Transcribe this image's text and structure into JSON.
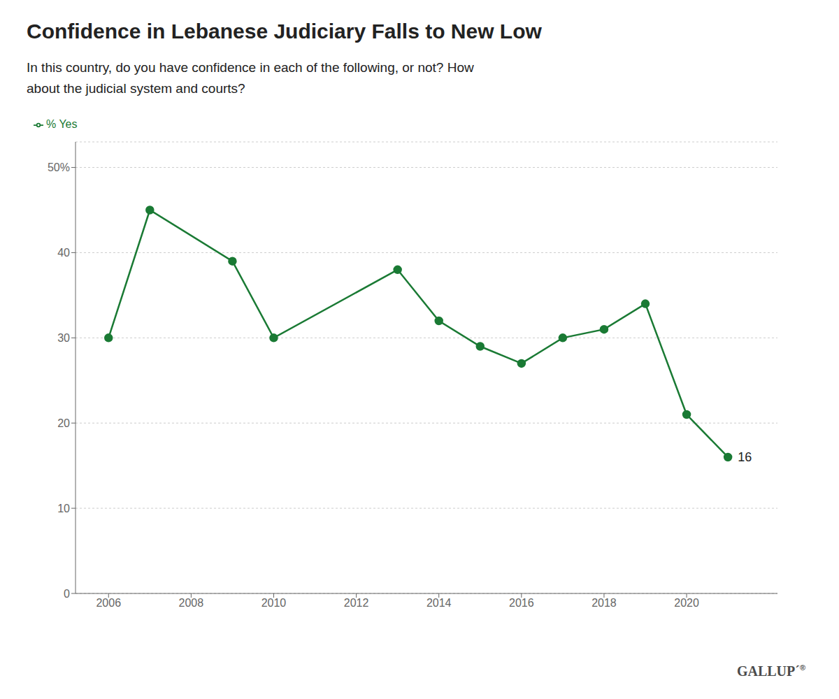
{
  "chart_data": {
    "type": "line",
    "title": "Confidence in Lebanese Judiciary Falls to New Low",
    "subtitle": "In this country, do you have confidence in each of the following, or not? How\nabout the judicial system and courts?",
    "x": [
      2006,
      2007,
      2009,
      2010,
      2013,
      2014,
      2015,
      2016,
      2017,
      2018,
      2019,
      2020,
      2021
    ],
    "series": [
      {
        "name": "% Yes",
        "color": "#1a7a34",
        "marker": "circle",
        "values": [
          30,
          45,
          39,
          30,
          38,
          32,
          29,
          27,
          30,
          31,
          34,
          21,
          16
        ]
      }
    ],
    "xlim": [
      2005.2,
      2022.2
    ],
    "xticks": [
      2006,
      2008,
      2010,
      2012,
      2014,
      2016,
      2018,
      2020
    ],
    "ylim": [
      0,
      53
    ],
    "yticks": [
      0,
      10,
      20,
      30,
      40,
      {
        "value": 50,
        "label": "50%"
      }
    ],
    "grid": true,
    "legend": "top-left",
    "annotations": [
      {
        "text": "16",
        "x": 2021,
        "y": 16
      },
      {
        "text": "GALLUP´"
      },
      {
        "text": "®"
      }
    ]
  }
}
